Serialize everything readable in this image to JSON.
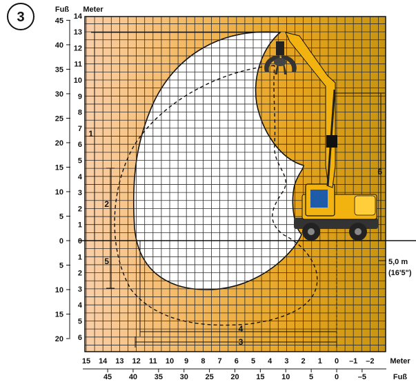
{
  "badge": "3",
  "units": {
    "left_feet": "Fuß",
    "left_meter": "Meter",
    "bottom_meter": "Meter",
    "bottom_feet": "Fuß"
  },
  "axes": {
    "meter_up": [
      "14",
      "13",
      "12",
      "11",
      "10",
      "9",
      "8",
      "7",
      "6",
      "5",
      "4",
      "3",
      "2",
      "1",
      "0"
    ],
    "meter_down": [
      "1",
      "2",
      "3",
      "4",
      "5",
      "6"
    ],
    "feet_up": [
      "45",
      "40",
      "35",
      "30",
      "25",
      "20",
      "15",
      "10",
      "5",
      "0"
    ],
    "feet_down": [
      "5",
      "10",
      "15",
      "20"
    ],
    "bottom_meter": [
      "15",
      "14",
      "13",
      "12",
      "11",
      "10",
      "9",
      "8",
      "7",
      "6",
      "5",
      "4",
      "3",
      "2",
      "1",
      "0",
      "–1",
      "–2"
    ],
    "bottom_feet": [
      "45",
      "40",
      "35",
      "30",
      "25",
      "20",
      "15",
      "10",
      "5",
      "0",
      "–5"
    ]
  },
  "dimensions": {
    "d1": "1",
    "d2": "2",
    "d3": "3",
    "d4": "4",
    "d5": "5",
    "d6": "6"
  },
  "base_height": {
    "metric": "5,0 m",
    "imperial": "(16'5\")"
  },
  "colors": {
    "background_left": "#f8c9a0",
    "background_right": "#d09a18",
    "machine_yellow": "#f2b310",
    "grid": "#2a2a2a",
    "envelope_fill": "#ffffff"
  }
}
